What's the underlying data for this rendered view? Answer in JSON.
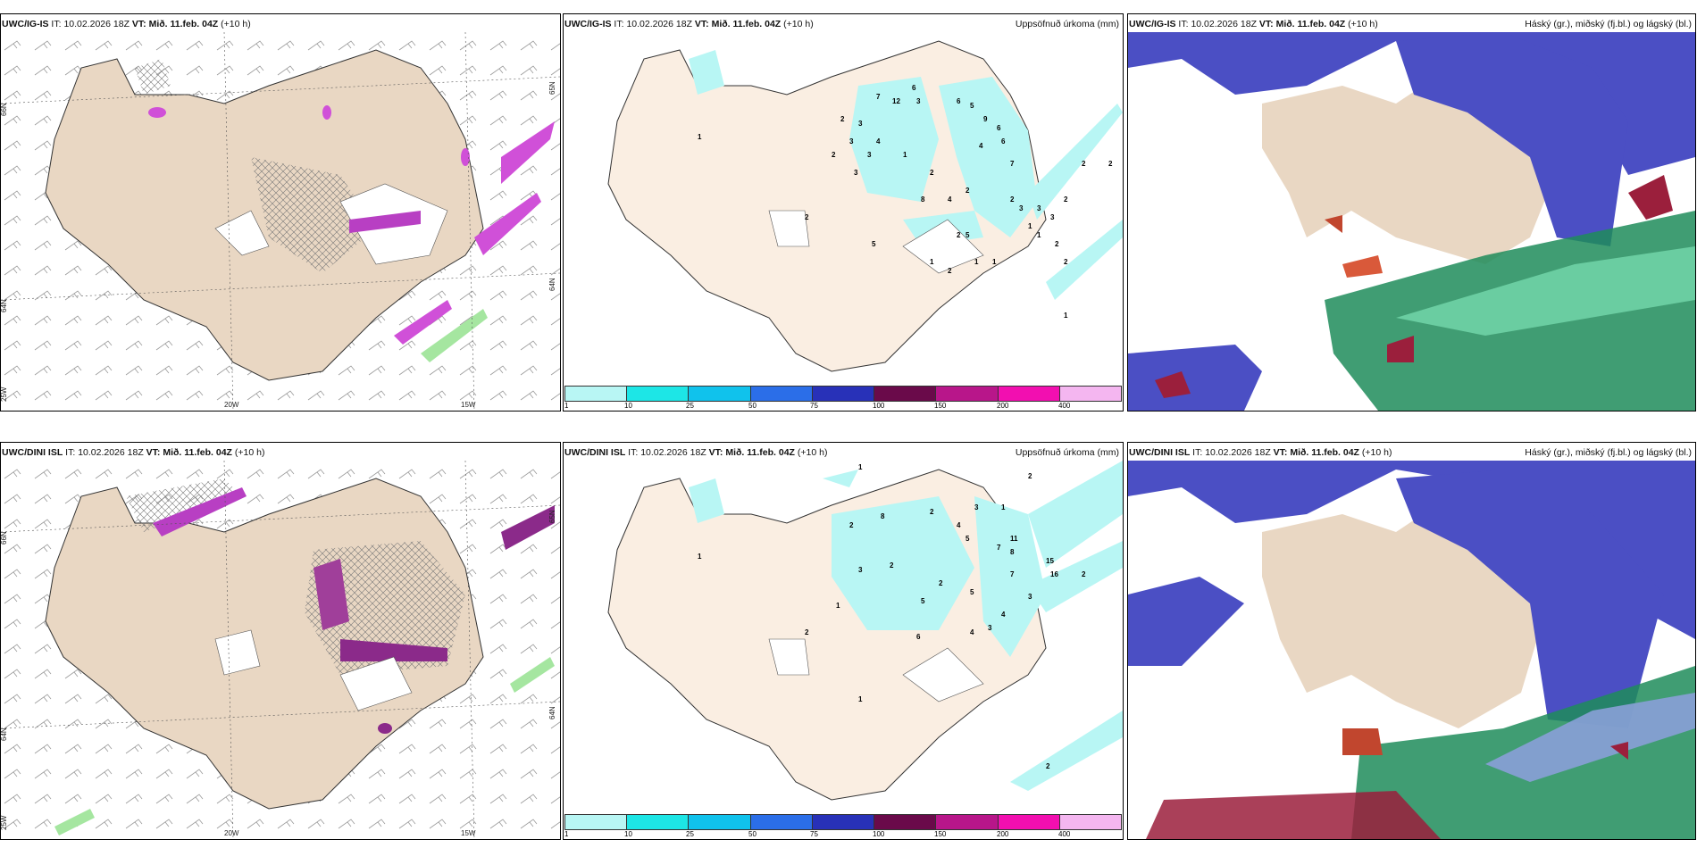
{
  "panels": [
    {
      "model": "UWC/IG-IS",
      "it_label": "IT:",
      "init_time": "10.02.2026 18Z",
      "vt_label": "VT:",
      "valid_time": "Mið. 11.feb. 04Z",
      "lead": "(+10 h)",
      "subtitle": "",
      "axis_labels": {
        "lat_a": "66N",
        "lat_b": "64N",
        "lat_c": "65N",
        "lat_d": "64N",
        "lon_a": "20W",
        "lon_b": "15W",
        "corner": "25W"
      }
    },
    {
      "model": "UWC/IG-IS",
      "it_label": "IT:",
      "init_time": "10.02.2026 18Z",
      "vt_label": "VT:",
      "valid_time": "Mið. 11.feb. 04Z",
      "lead": "(+10 h)",
      "subtitle": "Uppsöfnuð úrkoma (mm)",
      "precip_labels": [
        "6",
        "7",
        "12",
        "3",
        "2",
        "3",
        "6",
        "9",
        "5",
        "6",
        "1",
        "3",
        "4",
        "3",
        "2",
        "3",
        "2",
        "1",
        "2",
        "4",
        "5",
        "2",
        "2",
        "8",
        "3",
        "1",
        "2",
        "7",
        "4",
        "2",
        "6",
        "1",
        "5",
        "3",
        "3",
        "1",
        "2",
        "2",
        "1",
        "1",
        "2",
        "2",
        "2",
        "1"
      ]
    },
    {
      "model": "UWC/IG-IS",
      "it_label": "IT:",
      "init_time": "10.02.2026 18Z",
      "vt_label": "VT:",
      "valid_time": "Mið. 11.feb. 04Z",
      "lead": "(+10 h)",
      "subtitle": "Háský (gr.), miðský (fj.bl.) og lágský (bl.)"
    },
    {
      "model": "UWC/DINI ISL",
      "it_label": "IT:",
      "init_time": "10.02.2026 18Z",
      "vt_label": "VT:",
      "valid_time": "Mið. 11.feb. 04Z",
      "lead": "(+10 h)",
      "subtitle": "",
      "axis_labels": {
        "lat_a": "66N",
        "lat_b": "64N",
        "lat_c": "65N",
        "lat_d": "64N",
        "lon_a": "20W",
        "lon_b": "15W",
        "corner": "25W"
      }
    },
    {
      "model": "UWC/DINI ISL",
      "it_label": "IT:",
      "init_time": "10.02.2026 18Z",
      "vt_label": "VT:",
      "valid_time": "Mið. 11.feb. 04Z",
      "lead": "(+10 h)",
      "subtitle": "Uppsöfnuð úrkoma (mm)",
      "precip_labels": [
        "1",
        "2",
        "3",
        "2",
        "1",
        "8",
        "1",
        "2",
        "4",
        "5",
        "11",
        "8",
        "7",
        "15",
        "16",
        "2",
        "3",
        "2",
        "2",
        "5",
        "7",
        "4",
        "3",
        "4",
        "5",
        "6",
        "3",
        "2",
        "1",
        "2",
        "1"
      ]
    },
    {
      "model": "UWC/DINI ISL",
      "it_label": "IT:",
      "init_time": "10.02.2026 18Z",
      "vt_label": "VT:",
      "valid_time": "Mið. 11.feb. 04Z",
      "lead": "(+10 h)",
      "subtitle": "Háský (gr.), miðský (fj.bl.) og lágský (bl.)"
    }
  ],
  "colorbar": {
    "ticks": [
      "1",
      "10",
      "25",
      "50",
      "75",
      "100",
      "150",
      "200",
      "400"
    ],
    "colors": [
      "#b8f6f4",
      "#1de6e6",
      "#10c2ec",
      "#2b6ee8",
      "#2831b8",
      "#6a0a4a",
      "#b8168a",
      "#f20fb0",
      "#f4b6f0"
    ]
  },
  "colors": {
    "land": "#e9d7c3",
    "land_precip": "#faeee2",
    "precip_light": "#b8f6f4",
    "cloud_high": "#1e8c5a",
    "cloud_mid": "#4b4fc4",
    "cloud_low": "#9b1f3c",
    "snow": "#d050d8"
  }
}
